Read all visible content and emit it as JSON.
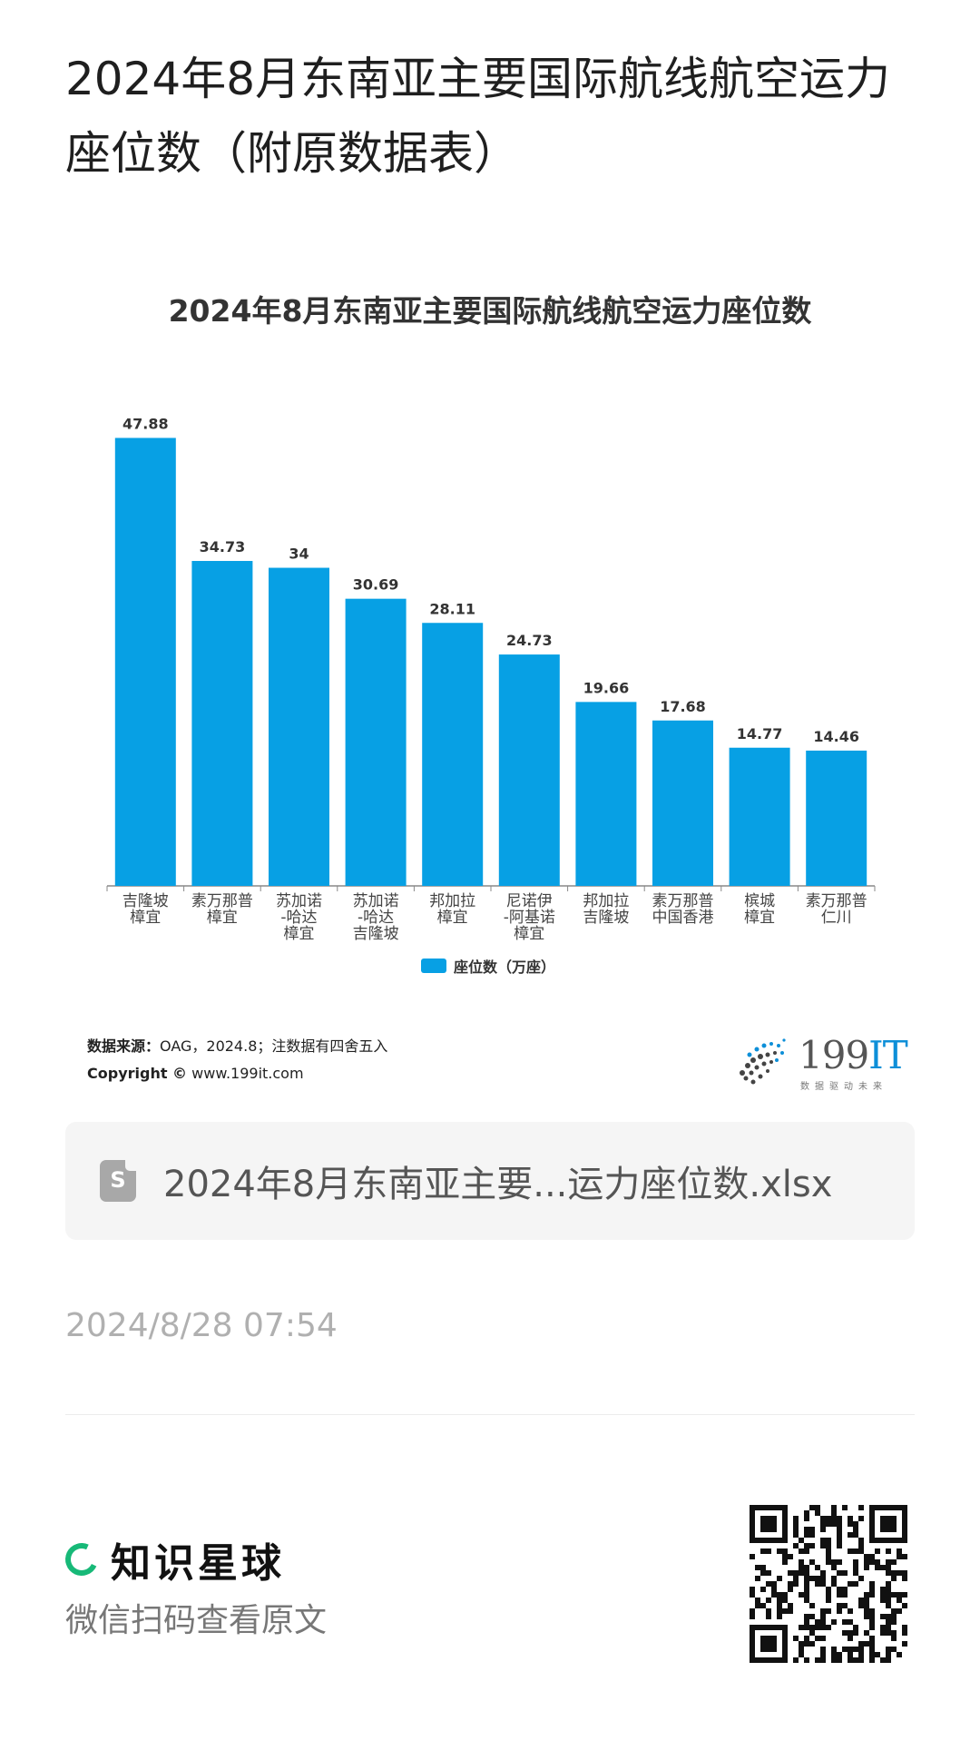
{
  "page": {
    "title": "2024年8月东南亚主要国际航线航空运力座位数（附原数据表）"
  },
  "chart_data": {
    "type": "bar",
    "title": "2024年8月东南亚主要国际航线航空运力座位数",
    "categories": [
      [
        "吉隆坡",
        "樟宜"
      ],
      [
        "素万那普",
        "樟宜"
      ],
      [
        "苏加诺",
        "-哈达",
        "樟宜"
      ],
      [
        "苏加诺",
        "-哈达",
        "吉隆坡"
      ],
      [
        "邦加拉",
        "樟宜"
      ],
      [
        "尼诺伊",
        "-阿基诺",
        "樟宜"
      ],
      [
        "邦加拉",
        "吉隆坡"
      ],
      [
        "素万那普",
        "中国香港"
      ],
      [
        "槟城",
        "樟宜"
      ],
      [
        "素万那普",
        "仁川"
      ]
    ],
    "series": [
      {
        "name": "座位数（万座）",
        "values": [
          47.88,
          34.73,
          34,
          30.69,
          28.11,
          24.73,
          19.66,
          17.68,
          14.77,
          14.46
        ],
        "labels": [
          "47.88",
          "34.73",
          "34",
          "30.69",
          "28.11",
          "24.73",
          "19.66",
          "17.68",
          "14.77",
          "14.46"
        ],
        "color": "#07a0e4"
      }
    ],
    "ylim": [
      0,
      52
    ],
    "grid": false,
    "legend": "bottom"
  },
  "source": {
    "label": "数据来源：",
    "text": "OAG，2024.8；注数据有四舍五入",
    "copyright_label": "Copyright ©",
    "copyright_url": "www.199it.com"
  },
  "logo": {
    "text": "199",
    "text_accent": "IT",
    "subtitle": "数据驱动未来"
  },
  "file": {
    "icon": "spreadsheet-file-icon",
    "icon_letter": "S",
    "name": "2024年8月东南亚主要...运力座位数.xlsx"
  },
  "timestamp": "2024/8/28 07:54",
  "brand": {
    "name": "知识星球",
    "subtitle": "微信扫码查看原文",
    "color": "#17b978"
  }
}
